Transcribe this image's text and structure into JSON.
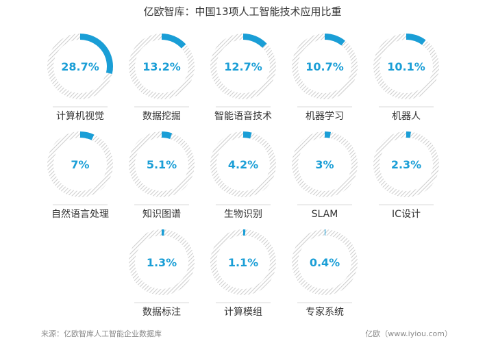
{
  "title": "亿欧智库：中国13项人工智能技术应用比重",
  "source": "来源：亿欧智库人工智能企业数据库",
  "credit": "亿欧（www.iyiou.com）",
  "colors": {
    "accent": "#1a9ed6",
    "track": "#cfcfcf",
    "label": "#333333",
    "value_text": "#1a9ed6"
  },
  "chart_data": {
    "type": "donut-grid",
    "title": "亿欧智库：中国13项人工智能技术应用比重",
    "unit": "%",
    "items": [
      {
        "label": "计算机视觉",
        "value": 28.7,
        "display": "28.7%"
      },
      {
        "label": "数据挖掘",
        "value": 13.2,
        "display": "13.2%"
      },
      {
        "label": "智能语音技术",
        "value": 12.7,
        "display": "12.7%"
      },
      {
        "label": "机器学习",
        "value": 10.7,
        "display": "10.7%"
      },
      {
        "label": "机器人",
        "value": 10.1,
        "display": "10.1%"
      },
      {
        "label": "自然语言处理",
        "value": 7,
        "display": "7%"
      },
      {
        "label": "知识图谱",
        "value": 5.1,
        "display": "5.1%"
      },
      {
        "label": "生物识别",
        "value": 4.2,
        "display": "4.2%"
      },
      {
        "label": "SLAM",
        "value": 3,
        "display": "3%"
      },
      {
        "label": "IC设计",
        "value": 2.3,
        "display": "2.3%"
      },
      {
        "label": "数据标注",
        "value": 1.3,
        "display": "1.3%"
      },
      {
        "label": "计算模组",
        "value": 1.1,
        "display": "1.1%"
      },
      {
        "label": "专家系统",
        "value": 0.4,
        "display": "0.4%"
      }
    ]
  }
}
